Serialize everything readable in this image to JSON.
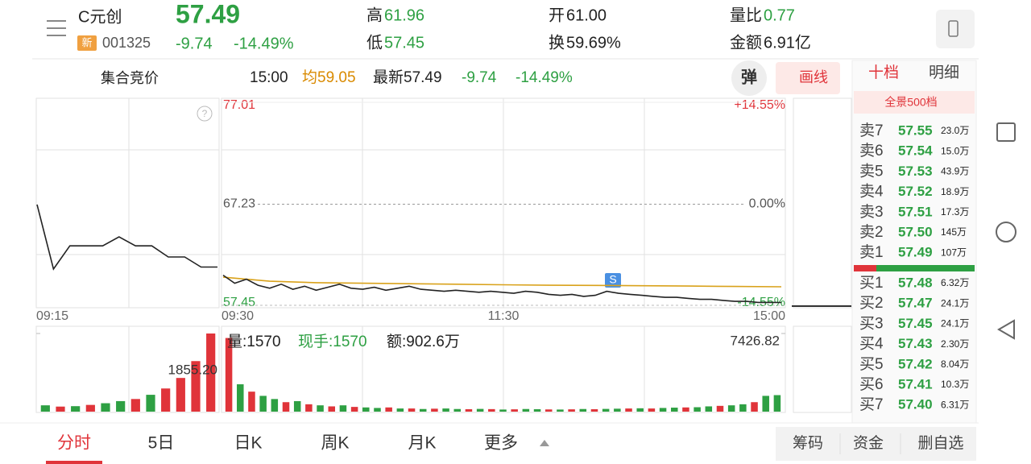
{
  "header": {
    "name": "C元创",
    "badge": "新",
    "code": "001325",
    "price": "57.49",
    "change": "-9.74",
    "change_pct": "-14.49%",
    "high_label": "高",
    "high": "61.96",
    "low_label": "低",
    "low": "57.45",
    "open_label": "开",
    "open": "61.00",
    "turnover_label": "换",
    "turnover": "59.69%",
    "vol_ratio_label": "量比",
    "vol_ratio": "0.77",
    "amount_label": "金额",
    "amount": "6.91亿"
  },
  "bar": {
    "auction": "集合竞价",
    "time": "15:00",
    "avg_label": "均",
    "avg": "59.05",
    "latest_label": "最新",
    "latest": "57.49",
    "change": "-9.74",
    "change_pct": "-14.49%",
    "popup": "弹",
    "draw": "画线"
  },
  "panel": {
    "tabs": [
      "十档",
      "明细"
    ],
    "sub": "全景500档",
    "asks": [
      {
        "label": "卖7",
        "price": "57.55",
        "vol": "23.0万"
      },
      {
        "label": "卖6",
        "price": "57.54",
        "vol": "15.0万"
      },
      {
        "label": "卖5",
        "price": "57.53",
        "vol": "43.9万"
      },
      {
        "label": "卖4",
        "price": "57.52",
        "vol": "18.9万"
      },
      {
        "label": "卖3",
        "price": "57.51",
        "vol": "17.3万"
      },
      {
        "label": "卖2",
        "price": "57.50",
        "vol": "145万"
      },
      {
        "label": "卖1",
        "price": "57.49",
        "vol": "107万"
      }
    ],
    "bids": [
      {
        "label": "买1",
        "price": "57.48",
        "vol": "6.32万"
      },
      {
        "label": "买2",
        "price": "57.47",
        "vol": "24.1万"
      },
      {
        "label": "买3",
        "price": "57.45",
        "vol": "24.1万"
      },
      {
        "label": "买4",
        "price": "57.43",
        "vol": "2.30万"
      },
      {
        "label": "买5",
        "price": "57.42",
        "vol": "8.04万"
      },
      {
        "label": "买6",
        "price": "57.41",
        "vol": "10.3万"
      },
      {
        "label": "买7",
        "price": "57.40",
        "vol": "6.31万"
      }
    ]
  },
  "chart": {
    "ylim": [
      57.45,
      77.01
    ],
    "yticks": [
      77.01,
      67.23,
      57.45
    ],
    "pct_ticks": [
      "+14.55%",
      "0.00%",
      "-14.55%"
    ],
    "x_labels": [
      "09:15",
      "09:30",
      "11:30",
      "15:00"
    ],
    "marker": "S",
    "pre_values": [
      67.2,
      60.8,
      63.1,
      63.1,
      63.1,
      64.0,
      63.1,
      63.1,
      62.0,
      62.0,
      61.0,
      61.0
    ],
    "values": [
      60.2,
      59.4,
      59.8,
      59.2,
      58.9,
      59.3,
      58.8,
      59.1,
      58.7,
      59.0,
      59.3,
      58.9,
      58.8,
      59.0,
      58.7,
      58.9,
      59.1,
      58.8,
      58.7,
      58.6,
      58.7,
      58.6,
      58.5,
      58.6,
      58.5,
      58.4,
      58.6,
      58.5,
      58.3,
      58.2,
      58.3,
      58.1,
      58.2,
      58.6,
      58.4,
      58.3,
      58.2,
      58.1,
      58.0,
      58.0,
      57.9,
      57.8,
      57.8,
      57.7,
      57.6,
      57.6,
      57.5,
      57.5,
      57.49
    ],
    "avg_values": [
      60.0,
      59.6,
      59.45,
      59.4,
      59.35,
      59.3,
      59.25,
      59.2,
      59.18,
      59.15,
      59.12,
      59.08,
      59.05
    ],
    "line_color": "#222222",
    "avg_color": "#d9a21b"
  },
  "volume": {
    "info": "量:1570",
    "hand": "现手:1570",
    "amount": "额:902.6万",
    "ylim": [
      0,
      7426.82
    ],
    "yticks": [
      7426.82
    ],
    "values": [
      7000,
      2600,
      1900,
      1500,
      1200,
      900,
      1000,
      700,
      600,
      500,
      600,
      450,
      400,
      350,
      400,
      300,
      300,
      250,
      280,
      300,
      250,
      230,
      260,
      240,
      200,
      220,
      250,
      230,
      210,
      200,
      220,
      250,
      230,
      260,
      280,
      300,
      320,
      300,
      350,
      380,
      400,
      420,
      500,
      550,
      600,
      700,
      900,
      1500,
      1570
    ],
    "colors": [
      "#e0343a",
      "#2ea043",
      "#e0343a",
      "#2ea043",
      "#2ea043",
      "#e0343a",
      "#2ea043",
      "#e0343a",
      "#2ea043",
      "#e0343a",
      "#2ea043",
      "#e0343a",
      "#2ea043",
      "#2ea043",
      "#e0343a",
      "#2ea043",
      "#e0343a",
      "#2ea043",
      "#e0343a",
      "#2ea043",
      "#2ea043",
      "#e0343a",
      "#2ea043",
      "#e0343a",
      "#2ea043",
      "#e0343a",
      "#2ea043",
      "#2ea043",
      "#e0343a",
      "#2ea043",
      "#e0343a",
      "#2ea043",
      "#e0343a",
      "#2ea043",
      "#2ea043",
      "#e0343a",
      "#2ea043",
      "#e0343a",
      "#2ea043",
      "#2ea043",
      "#e0343a",
      "#2ea043",
      "#2ea043",
      "#e0343a",
      "#2ea043",
      "#2ea043",
      "#e0343a",
      "#2ea043",
      "#2ea043"
    ],
    "pre_ylim": [
      0,
      1855.2
    ],
    "pre_yticks": [
      {
        "value": 1855.2,
        "label": "1855.20"
      }
    ],
    "pre_values": [
      150,
      120,
      130,
      160,
      200,
      250,
      300,
      400,
      550,
      800,
      1200,
      1855.2
    ],
    "pre_colors": [
      "#2ea043",
      "#e0343a",
      "#2ea043",
      "#e0343a",
      "#2ea043",
      "#2ea043",
      "#e0343a",
      "#2ea043",
      "#e0343a",
      "#e0343a",
      "#e0343a",
      "#e0343a"
    ]
  },
  "tabs": [
    "分时",
    "5日",
    "日K",
    "周K",
    "月K",
    "更多"
  ],
  "actions": [
    "筹码",
    "资金",
    "删自选"
  ]
}
